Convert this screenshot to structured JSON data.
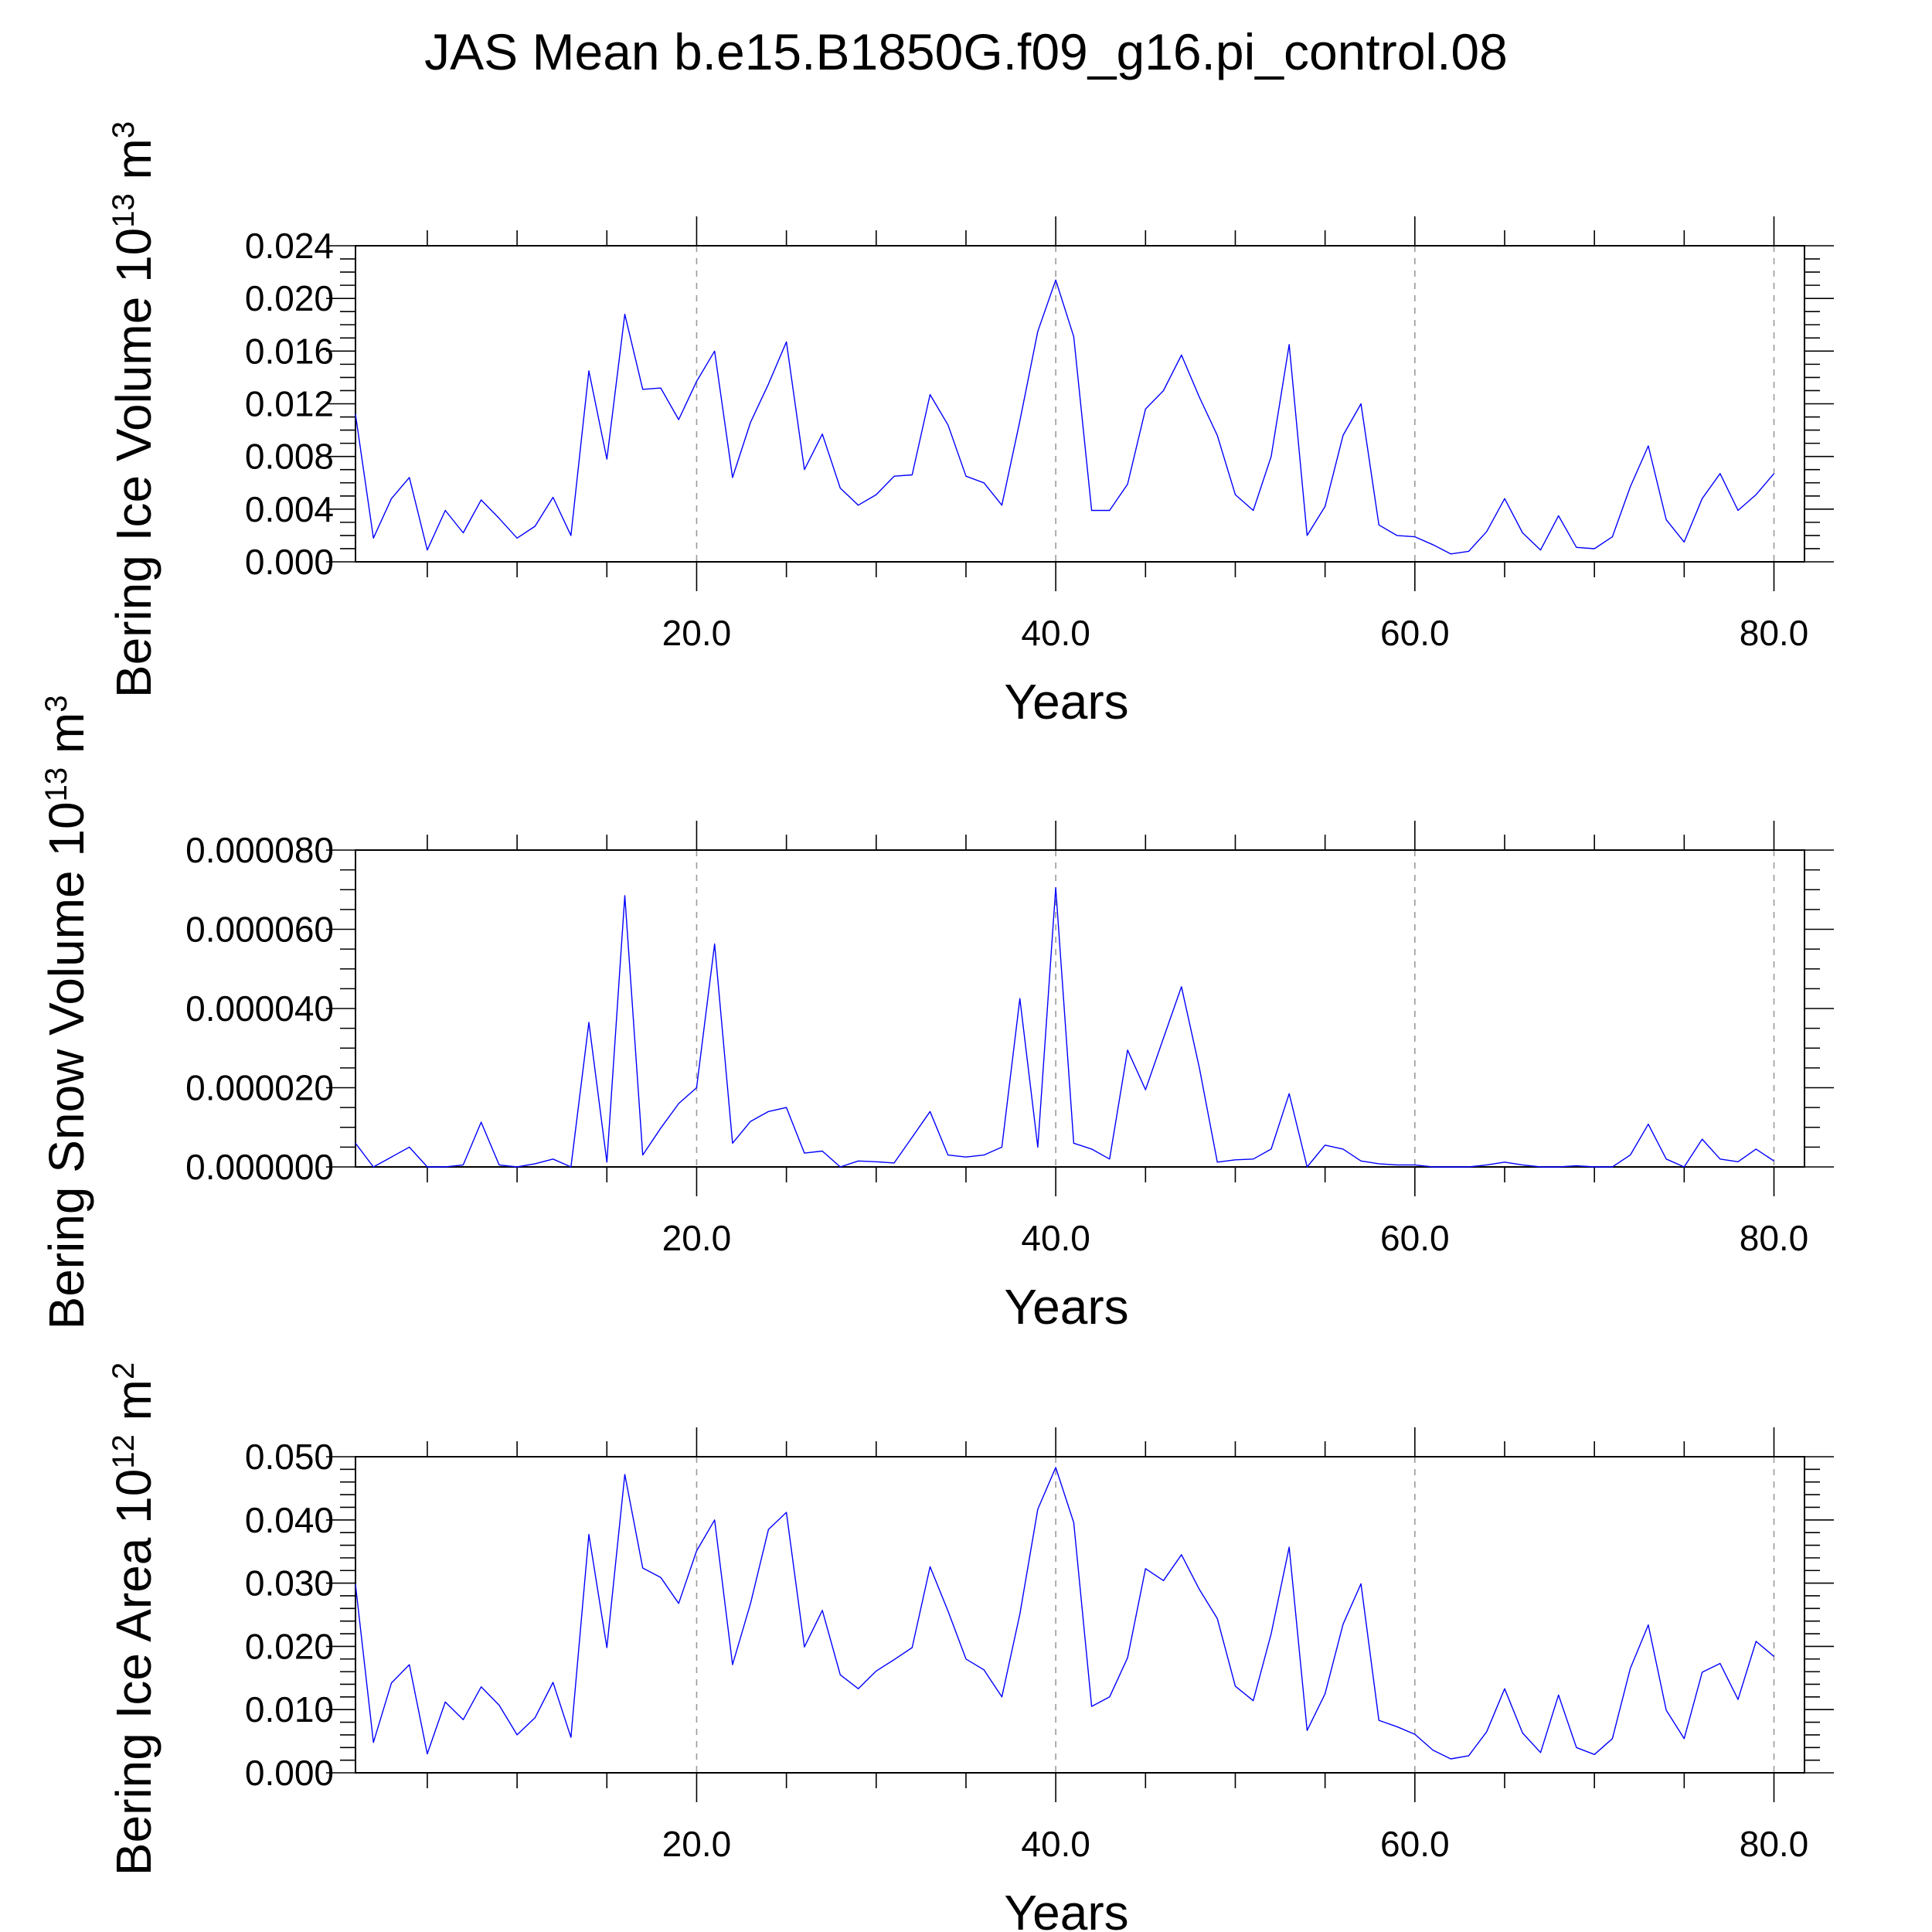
{
  "title": "JAS Mean b.e15.B1850G.f09_g16.pi_control.08",
  "line_color": "#0000ff",
  "chart_data": [
    {
      "type": "line",
      "ylabel": "Bering Ice Volume",
      "yunit_base": "10",
      "yunit_exp": "13",
      "yunit_sym": "m",
      "yunit_sym_exp": "3",
      "xlabel": "Years",
      "xlim": [
        1,
        81.7
      ],
      "ylim": [
        0.0,
        0.024
      ],
      "xticks": [
        "20.0",
        "40.0",
        "60.0",
        "80.0"
      ],
      "yticks": [
        "0.000",
        "0.004",
        "0.008",
        "0.012",
        "0.016",
        "0.020",
        "0.024"
      ],
      "x_start": 1,
      "values": [
        0.0112,
        0.0018,
        0.0048,
        0.0064,
        0.0009,
        0.0039,
        0.0022,
        0.0047,
        0.0033,
        0.0018,
        0.0027,
        0.0049,
        0.002,
        0.0145,
        0.0078,
        0.0188,
        0.0131,
        0.0132,
        0.0108,
        0.0137,
        0.016,
        0.0064,
        0.0106,
        0.0135,
        0.0167,
        0.007,
        0.0097,
        0.0056,
        0.0043,
        0.0051,
        0.0065,
        0.0066,
        0.0127,
        0.0104,
        0.0065,
        0.006,
        0.0043,
        0.0107,
        0.0175,
        0.0214,
        0.0171,
        0.0039,
        0.0039,
        0.0059,
        0.0116,
        0.013,
        0.0157,
        0.0125,
        0.0096,
        0.0051,
        0.0039,
        0.008,
        0.0165,
        0.002,
        0.0042,
        0.0096,
        0.012,
        0.0028,
        0.002,
        0.0019,
        0.0013,
        0.0006,
        0.0008,
        0.0023,
        0.0048,
        0.0022,
        0.0009,
        0.0035,
        0.0011,
        0.001,
        0.0019,
        0.0057,
        0.0088,
        0.0032,
        0.0015,
        0.0048,
        0.0067,
        0.0039,
        0.0051,
        0.0067
      ]
    },
    {
      "type": "line",
      "ylabel": "Bering Snow Volume",
      "yunit_base": "10",
      "yunit_exp": "13",
      "yunit_sym": "m",
      "yunit_sym_exp": "3",
      "xlabel": "Years",
      "xlim": [
        1,
        81.7
      ],
      "ylim": [
        0.0,
        8e-05
      ],
      "xticks": [
        "20.0",
        "40.0",
        "60.0",
        "80.0"
      ],
      "yticks": [
        "0.000000",
        "0.000020",
        "0.000040",
        "0.000060",
        "0.000080"
      ],
      "x_start": 1,
      "values": [
        6e-06,
        0.0,
        2.5e-06,
        5e-06,
        0.0,
        0.0,
        5e-07,
        1.13e-05,
        5e-07,
        0.0,
        8e-07,
        2e-06,
        0.0,
        3.65e-05,
        1.2e-06,
        6.85e-05,
        3e-06,
        9.8e-06,
        1.6e-05,
        2e-05,
        5.63e-05,
        6e-06,
        1.15e-05,
        1.4e-05,
        1.5e-05,
        3.5e-06,
        4e-06,
        0.0,
        1.5e-06,
        1.3e-06,
        1e-06,
        7.5e-06,
        1.4e-05,
        3e-06,
        2.5e-06,
        3e-06,
        5e-06,
        4.25e-05,
        5e-06,
        7.05e-05,
        6e-06,
        4.5e-06,
        2e-06,
        2.95e-05,
        1.95e-05,
        3.25e-05,
        4.55e-05,
        2.5e-05,
        1.2e-06,
        1.8e-06,
        2e-06,
        4.5e-06,
        1.85e-05,
        0.0,
        5.5e-06,
        4.5e-06,
        1.5e-06,
        8e-07,
        5e-07,
        5e-07,
        0.0,
        0.0,
        0.0,
        5e-07,
        1.2e-06,
        5e-07,
        0.0,
        0.0,
        3e-07,
        0.0,
        0.0,
        3e-06,
        1.08e-05,
        2e-06,
        0.0,
        7e-06,
        2e-06,
        1.3e-06,
        4.5e-06,
        1.5e-06
      ]
    },
    {
      "type": "line",
      "ylabel": "Bering Ice Area",
      "yunit_base": "10",
      "yunit_exp": "12",
      "yunit_sym": "m",
      "yunit_sym_exp": "2",
      "xlabel": "Years",
      "xlim": [
        1,
        81.7
      ],
      "ylim": [
        0.0,
        0.05
      ],
      "xticks": [
        "20.0",
        "40.0",
        "60.0",
        "80.0"
      ],
      "yticks": [
        "0.000",
        "0.010",
        "0.020",
        "0.030",
        "0.040",
        "0.050"
      ],
      "x_start": 1,
      "values": [
        0.0298,
        0.0048,
        0.0142,
        0.0171,
        0.003,
        0.0112,
        0.0084,
        0.0136,
        0.0107,
        0.006,
        0.0087,
        0.0143,
        0.0056,
        0.0377,
        0.0198,
        0.0472,
        0.0324,
        0.0309,
        0.0268,
        0.0351,
        0.04,
        0.0171,
        0.0268,
        0.0385,
        0.0412,
        0.0199,
        0.0257,
        0.0155,
        0.0133,
        0.0161,
        0.0179,
        0.0198,
        0.0326,
        0.0256,
        0.018,
        0.0163,
        0.012,
        0.0251,
        0.0417,
        0.0483,
        0.0396,
        0.0105,
        0.012,
        0.0182,
        0.0323,
        0.0304,
        0.0345,
        0.029,
        0.0244,
        0.0137,
        0.0114,
        0.022,
        0.0357,
        0.0067,
        0.0125,
        0.0235,
        0.0299,
        0.0083,
        0.0073,
        0.0061,
        0.0036,
        0.0022,
        0.0027,
        0.0065,
        0.0133,
        0.0063,
        0.0032,
        0.0123,
        0.004,
        0.0029,
        0.0054,
        0.0165,
        0.0234,
        0.0099,
        0.0054,
        0.0159,
        0.0173,
        0.0116,
        0.0208,
        0.0184
      ]
    }
  ]
}
